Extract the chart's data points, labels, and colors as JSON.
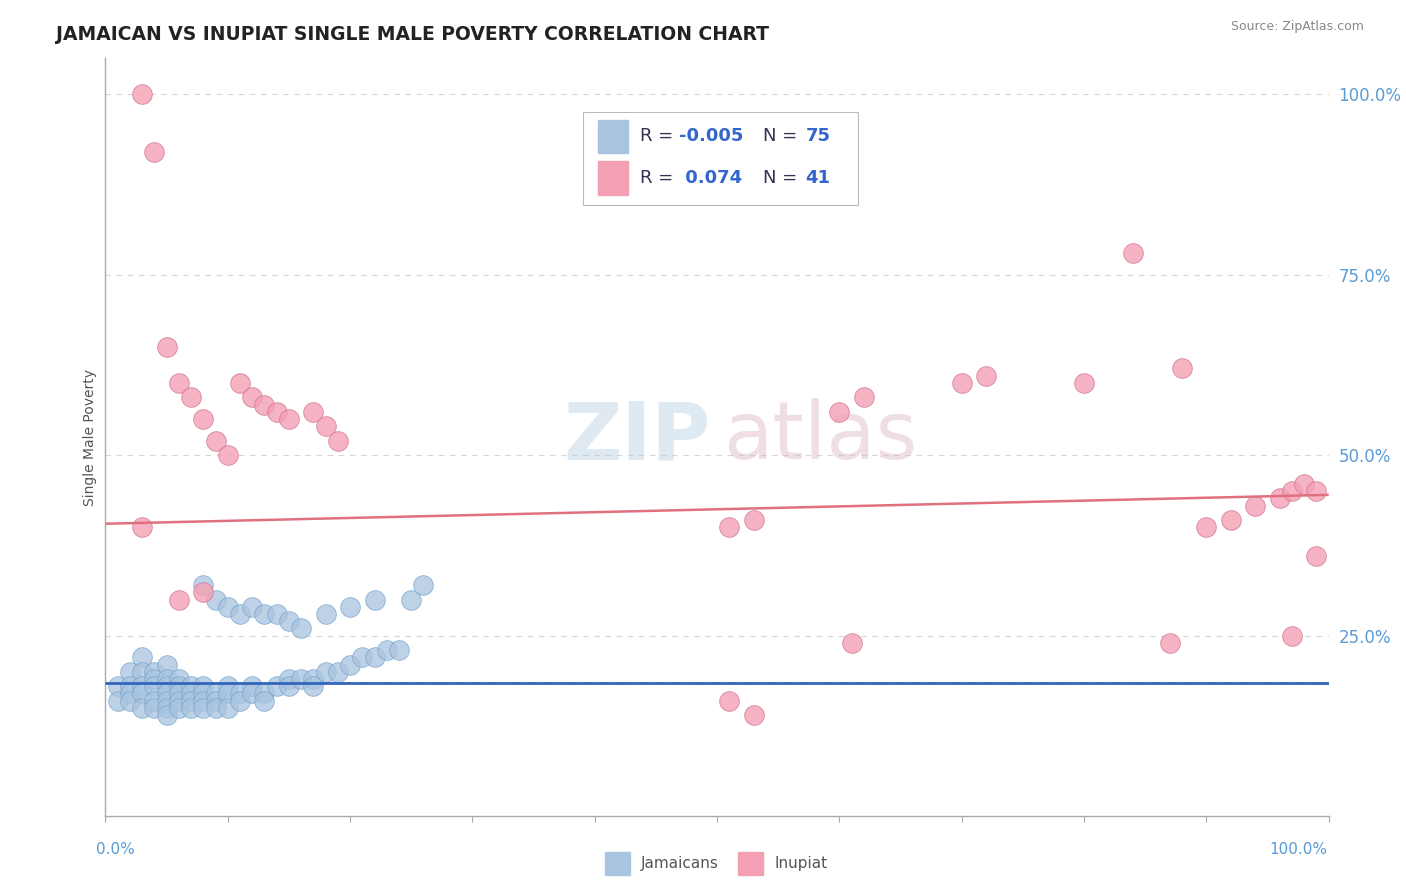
{
  "title": "JAMAICAN VS INUPIAT SINGLE MALE POVERTY CORRELATION CHART",
  "source_text": "Source: ZipAtlas.com",
  "ylabel": "Single Male Poverty",
  "jamaican_color": "#a8c4e0",
  "jamaican_edge_color": "#6fa0cc",
  "inupiat_color": "#f4a0b4",
  "inupiat_edge_color": "#d07090",
  "jamaican_line_color": "#3366bb",
  "inupiat_line_color": "#e07080",
  "dashed_line_color": "#88aacc",
  "grid_color": "#cccccc",
  "tick_color": "#5b9bd5",
  "title_color": "#222222",
  "source_color": "#888888",
  "ylabel_color": "#555555",
  "legend_edge_color": "#bbbbbb",
  "watermark_zip_color": "#b0c8e0",
  "watermark_atlas_color": "#d8b0c0",
  "bottom_label_color": "#555555",
  "jamaicans_x": [
    0.01,
    0.01,
    0.02,
    0.02,
    0.02,
    0.02,
    0.03,
    0.03,
    0.03,
    0.03,
    0.03,
    0.04,
    0.04,
    0.04,
    0.04,
    0.04,
    0.05,
    0.05,
    0.05,
    0.05,
    0.05,
    0.05,
    0.05,
    0.06,
    0.06,
    0.06,
    0.06,
    0.06,
    0.07,
    0.07,
    0.07,
    0.07,
    0.08,
    0.08,
    0.08,
    0.08,
    0.09,
    0.09,
    0.09,
    0.1,
    0.1,
    0.1,
    0.11,
    0.11,
    0.12,
    0.12,
    0.13,
    0.13,
    0.14,
    0.15,
    0.15,
    0.16,
    0.17,
    0.17,
    0.18,
    0.19,
    0.2,
    0.21,
    0.22,
    0.23,
    0.24,
    0.08,
    0.09,
    0.1,
    0.11,
    0.12,
    0.13,
    0.14,
    0.15,
    0.16,
    0.18,
    0.2,
    0.22,
    0.25,
    0.26
  ],
  "jamaicans_y": [
    0.18,
    0.16,
    0.2,
    0.18,
    0.17,
    0.16,
    0.22,
    0.2,
    0.18,
    0.17,
    0.15,
    0.2,
    0.19,
    0.18,
    0.16,
    0.15,
    0.21,
    0.19,
    0.18,
    0.17,
    0.16,
    0.15,
    0.14,
    0.19,
    0.18,
    0.17,
    0.16,
    0.15,
    0.18,
    0.17,
    0.16,
    0.15,
    0.18,
    0.17,
    0.16,
    0.15,
    0.17,
    0.16,
    0.15,
    0.18,
    0.17,
    0.15,
    0.17,
    0.16,
    0.18,
    0.17,
    0.17,
    0.16,
    0.18,
    0.19,
    0.18,
    0.19,
    0.19,
    0.18,
    0.2,
    0.2,
    0.21,
    0.22,
    0.22,
    0.23,
    0.23,
    0.32,
    0.3,
    0.29,
    0.28,
    0.29,
    0.28,
    0.28,
    0.27,
    0.26,
    0.28,
    0.29,
    0.3,
    0.3,
    0.32
  ],
  "inupiat_x": [
    0.03,
    0.04,
    0.05,
    0.06,
    0.07,
    0.08,
    0.09,
    0.1,
    0.11,
    0.12,
    0.13,
    0.14,
    0.15,
    0.17,
    0.18,
    0.19,
    0.51,
    0.53,
    0.6,
    0.62,
    0.7,
    0.72,
    0.8,
    0.84,
    0.88,
    0.9,
    0.92,
    0.94,
    0.96,
    0.97,
    0.98,
    0.99,
    0.99,
    0.03,
    0.06,
    0.08,
    0.51,
    0.53,
    0.61,
    0.87,
    0.97
  ],
  "inupiat_y": [
    1.0,
    0.92,
    0.65,
    0.6,
    0.58,
    0.55,
    0.52,
    0.5,
    0.6,
    0.58,
    0.57,
    0.56,
    0.55,
    0.56,
    0.54,
    0.52,
    0.4,
    0.41,
    0.56,
    0.58,
    0.6,
    0.61,
    0.6,
    0.78,
    0.62,
    0.4,
    0.41,
    0.43,
    0.44,
    0.45,
    0.46,
    0.45,
    0.36,
    0.4,
    0.3,
    0.31,
    0.16,
    0.14,
    0.24,
    0.24,
    0.25
  ],
  "inupiat_trend_x0": 0.0,
  "inupiat_trend_y0": 0.405,
  "inupiat_trend_x1": 1.0,
  "inupiat_trend_y1": 0.445,
  "jamaican_trend_y": 0.185,
  "dashed_line_y": 0.185,
  "xlim": [
    0.0,
    1.0
  ],
  "ylim": [
    0.0,
    1.05
  ],
  "ytick_positions": [
    0.25,
    0.5,
    0.75,
    1.0
  ],
  "ytick_labels": [
    "25.0%",
    "50.0%",
    "75.0%",
    "100.0%"
  ]
}
